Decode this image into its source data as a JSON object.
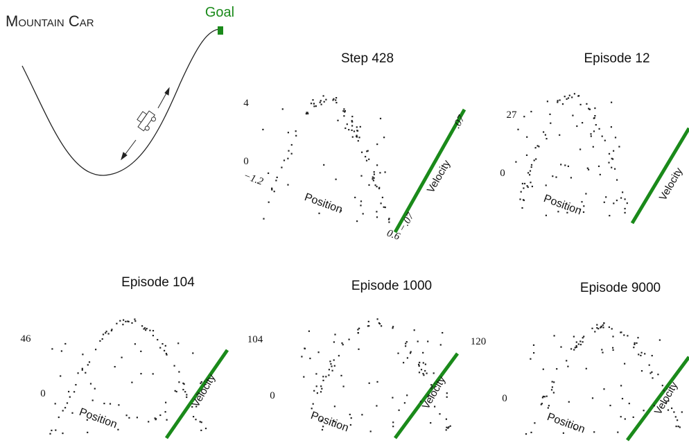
{
  "title": "Mountain Car",
  "goal_label": "Goal",
  "panels": [
    {
      "title": "Step 428",
      "z_max": "4",
      "z_min": "0",
      "x_axis": "Position",
      "y_axis": "Velocity",
      "x_min": "−1.2",
      "x_max": "0.6",
      "v_min": "−.07",
      "v_max": ".07"
    },
    {
      "title": "Episode 12",
      "z_max": "27",
      "z_min": "0",
      "x_axis": "Position",
      "y_axis": "Velocity"
    },
    {
      "title": "Episode 104",
      "z_max": "46",
      "z_min": "0",
      "x_axis": "Position",
      "y_axis": "Velocity"
    },
    {
      "title": "Episode 1000",
      "z_max": "104",
      "z_min": "0",
      "x_axis": "Position",
      "y_axis": "Velocity"
    },
    {
      "title": "Episode 9000",
      "z_max": "120",
      "z_min": "0",
      "x_axis": "Position",
      "y_axis": "Velocity"
    }
  ]
}
